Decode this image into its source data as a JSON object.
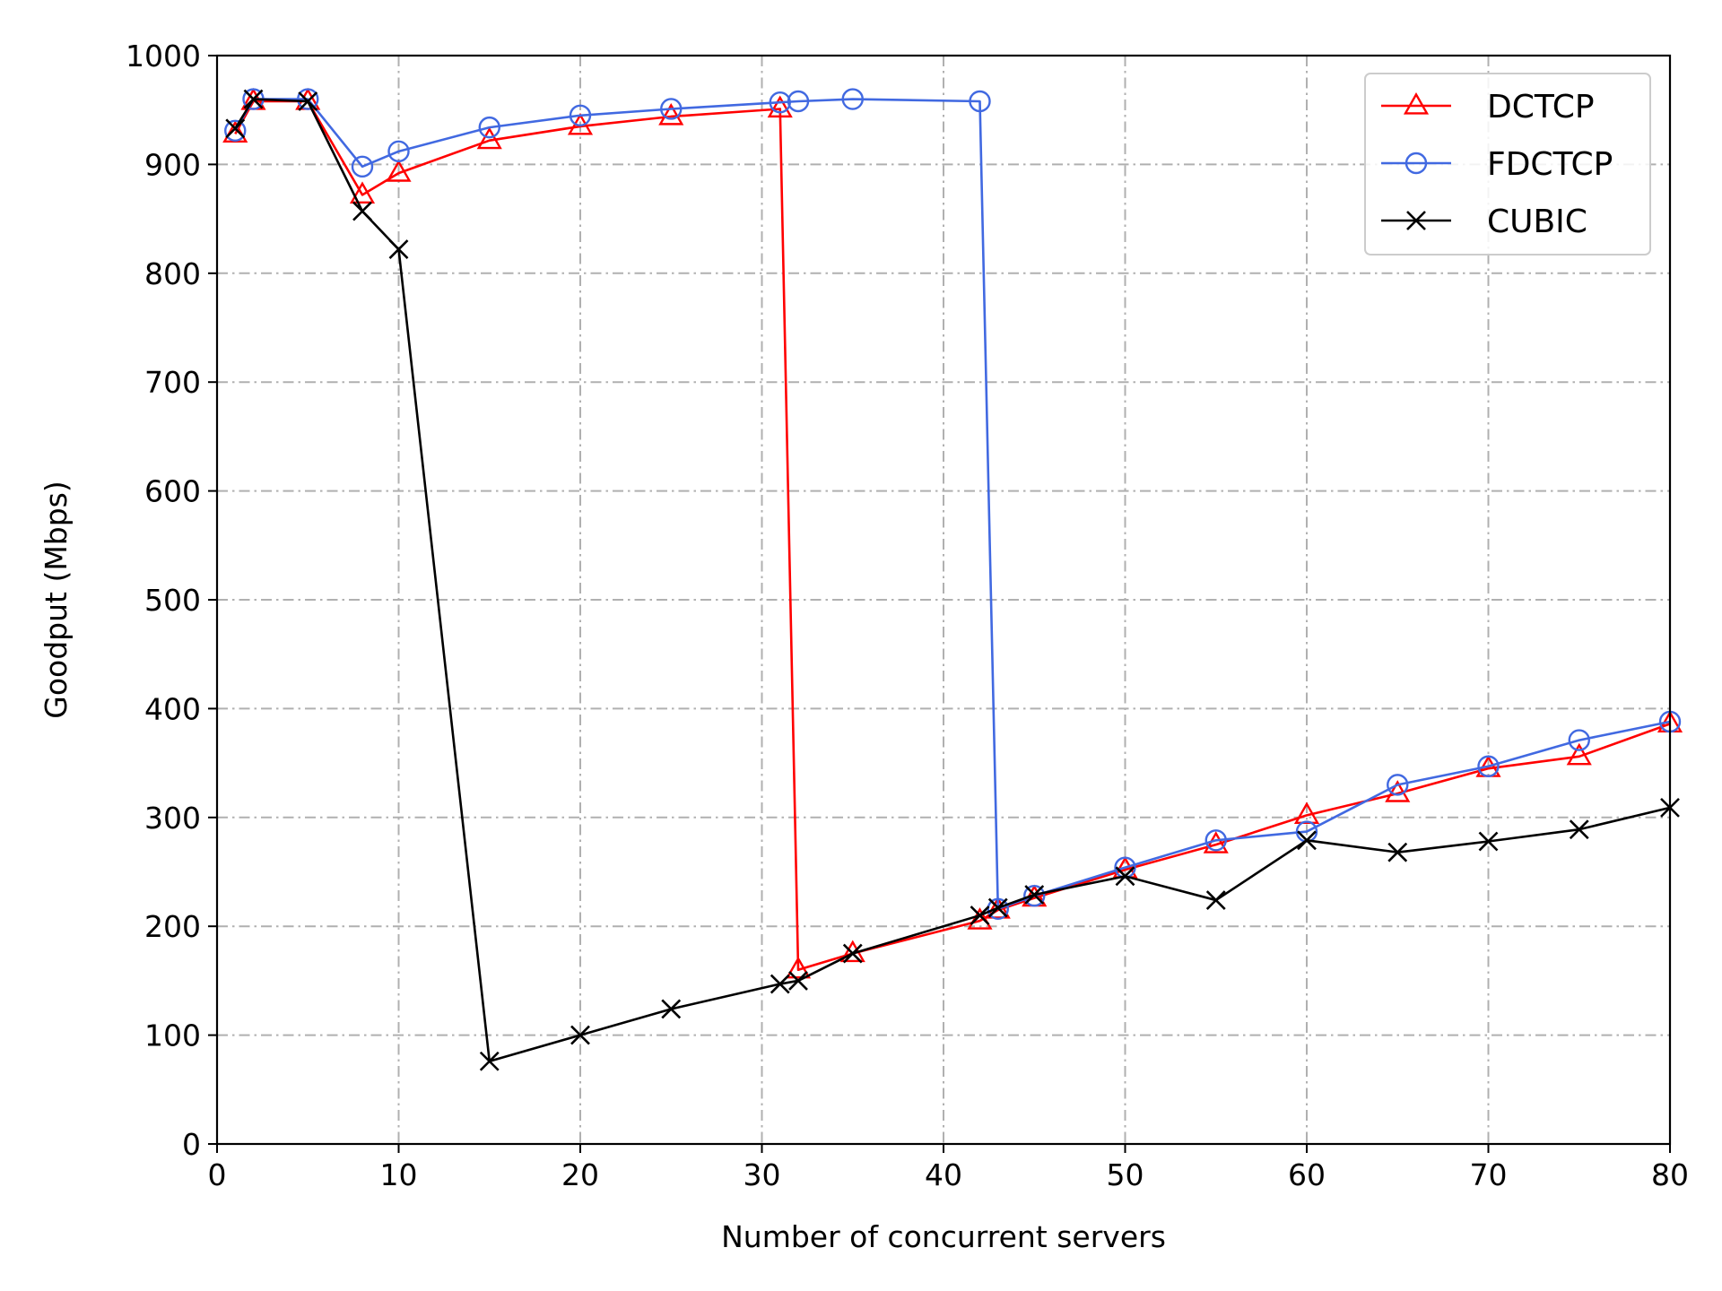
{
  "chart_data": {
    "type": "line",
    "xlabel": "Number of concurrent servers",
    "ylabel": "Goodput (Mbps)",
    "xlim": [
      0,
      80
    ],
    "ylim": [
      0,
      1000
    ],
    "xticks": [
      "0",
      "10",
      "20",
      "30",
      "40",
      "50",
      "60",
      "70",
      "80"
    ],
    "yticks": [
      "0",
      "100",
      "200",
      "300",
      "400",
      "500",
      "600",
      "700",
      "800",
      "900",
      "1000"
    ],
    "grid": true,
    "legend_position": "top-right",
    "series": [
      {
        "name": "DCTCP",
        "color": "#ff0000",
        "marker": "triangle",
        "x": [
          1,
          2,
          5,
          8,
          10,
          15,
          20,
          25,
          31,
          32,
          35,
          42,
          43,
          45,
          50,
          55,
          60,
          65,
          70,
          75,
          80
        ],
        "y": [
          928,
          958,
          958,
          872,
          892,
          922,
          935,
          944,
          951,
          160,
          175,
          205,
          215,
          226,
          252,
          275,
          302,
          322,
          345,
          356,
          386
        ]
      },
      {
        "name": "FDCTCP",
        "color": "#4169e1",
        "marker": "circle",
        "x": [
          1,
          2,
          5,
          8,
          10,
          15,
          20,
          25,
          31,
          32,
          35,
          42,
          43,
          45,
          50,
          55,
          60,
          65,
          70,
          75,
          80
        ],
        "y": [
          931,
          960,
          960,
          898,
          912,
          934,
          945,
          951,
          957,
          958,
          960,
          958,
          216,
          228,
          254,
          279,
          287,
          330,
          347,
          371,
          388
        ]
      },
      {
        "name": "CUBIC",
        "color": "#000000",
        "marker": "x",
        "x": [
          1,
          2,
          5,
          8,
          10,
          15,
          20,
          25,
          31,
          32,
          35,
          42,
          43,
          45,
          50,
          55,
          60,
          65,
          70,
          75,
          80
        ],
        "y": [
          933,
          960,
          958,
          857,
          822,
          76,
          100,
          124,
          147,
          150,
          175,
          210,
          217,
          229,
          246,
          224,
          279,
          268,
          278,
          289,
          309
        ]
      }
    ]
  }
}
